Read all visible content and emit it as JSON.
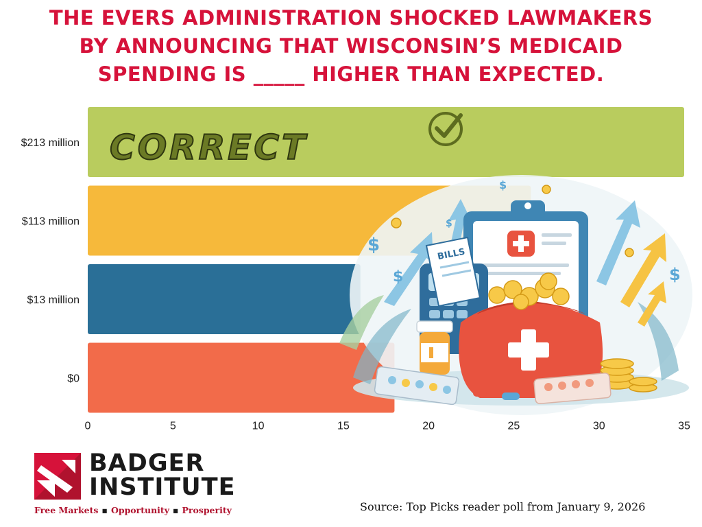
{
  "title_lines": [
    "THE EVERS ADMINISTRATION SHOCKED LAWMAKERS",
    "BY ANNOUNCING THAT WISCONSIN’S MEDICAID",
    "SPENDING IS _____ HIGHER THAN EXPECTED."
  ],
  "chart_data": {
    "type": "bar",
    "orientation": "horizontal",
    "categories": [
      "$213 million",
      "$113 million",
      "$13 million",
      "$0"
    ],
    "values": [
      35,
      26,
      16,
      18
    ],
    "colors": [
      "#b9cc5e",
      "#f6b93b",
      "#2a6f97",
      "#f26b4a"
    ],
    "xlim": [
      0,
      35
    ],
    "xticks": [
      0,
      5,
      10,
      15,
      20,
      25,
      30,
      35
    ],
    "correct_label": "CORRECT",
    "correct_category": "$213 million",
    "title": "",
    "xlabel": "",
    "ylabel": ""
  },
  "logo": {
    "name_line1": "BADGER",
    "name_line2": "INSTITUTE",
    "tagline": [
      "Free Markets",
      "Opportunity",
      "Prosperity"
    ],
    "separator": "▪"
  },
  "source": "Source: Top Picks reader poll from January 9, 2026",
  "illustration": {
    "bills_label": "BILLS"
  },
  "colors": {
    "title": "#d6123a",
    "brand_red": "#b0122e"
  }
}
